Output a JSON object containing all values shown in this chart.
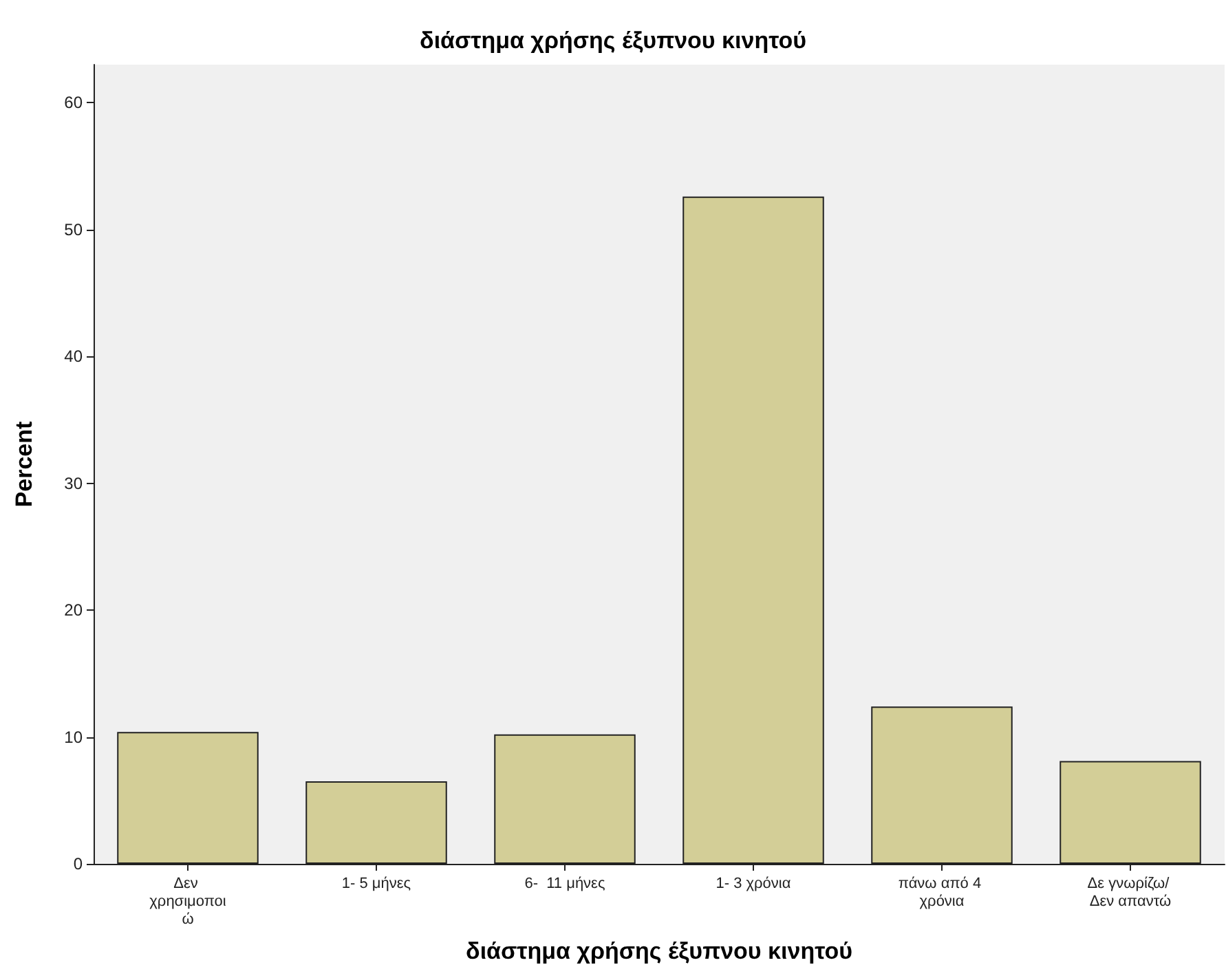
{
  "chart_data": {
    "type": "bar",
    "title": "διάστημα χρήσης έξυπνου κινητού",
    "xlabel": "διάστημα χρήσης έξυπνου κινητού",
    "ylabel": "Percent",
    "categories": [
      "Δεν χρησιμοποιώ",
      "1- 5 μήνες",
      "6-  11 μήνες",
      "1- 3 χρόνια",
      "πάνω από 4 χρόνια",
      "Δε γνωρίζω/ Δεν απαντώ"
    ],
    "values": [
      10.4,
      6.5,
      10.2,
      52.6,
      12.4,
      8.1
    ],
    "color": "#d3ce97",
    "ylim": [
      0,
      63
    ],
    "yticks": [
      0,
      10,
      20,
      30,
      40,
      50,
      60
    ],
    "grid": false
  }
}
